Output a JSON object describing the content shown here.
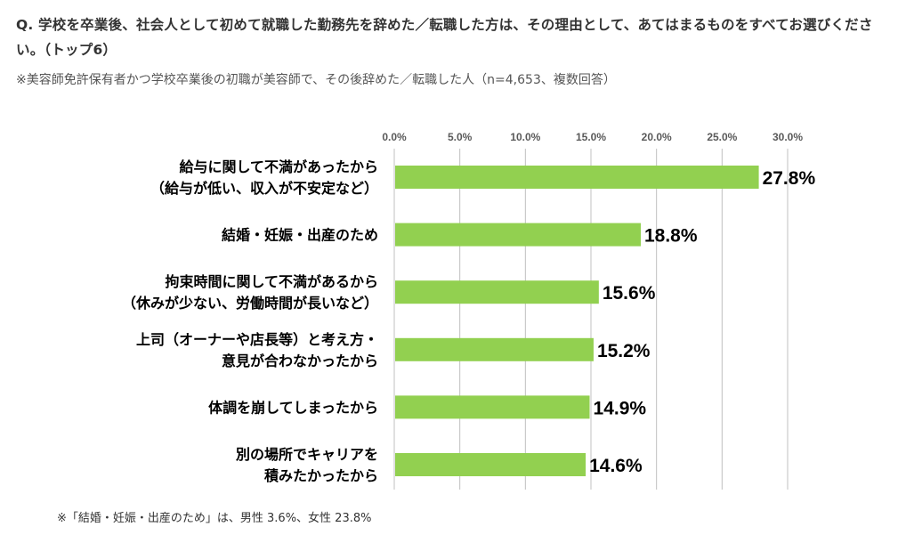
{
  "header": {
    "question": "Q. 学校を卒業後、社会人として初めて就職した勤務先を辞めた／転職した方は、その理由として、あてはまるものをすべてお選びください。（トップ6）",
    "subtitle": "※美容師免許保有者かつ学校卒業後の初職が美容師で、その後辞めた／転職した人（n=4,653、複数回答）"
  },
  "footnote": "※「結婚・妊娠・出産のため」は、男性 3.6%、女性 23.8%",
  "colors": {
    "bar": "#92D050",
    "grid": "#C0C0C0",
    "axis_text": "#595959",
    "label_text": "#000000"
  },
  "chart_data": {
    "type": "bar",
    "orientation": "horizontal",
    "categories": [
      [
        "給与に関して不満があったから",
        "（給与が低い、収入が不安定など）"
      ],
      [
        "結婚・妊娠・出産のため"
      ],
      [
        "拘束時間に関して不満があるから",
        "（休みが少ない、労働時間が長いなど）"
      ],
      [
        "上司（オーナーや店長等）と考え方・",
        "意見が合わなかったから"
      ],
      [
        "体調を崩してしまったから"
      ],
      [
        "別の場所でキャリアを",
        "積みたかったから"
      ]
    ],
    "values": [
      27.8,
      18.8,
      15.6,
      15.2,
      14.9,
      14.6
    ],
    "data_labels": [
      "27.8%",
      "18.8%",
      "15.6%",
      "15.2%",
      "14.9%",
      "14.6%"
    ],
    "xlim": [
      0,
      30
    ],
    "ticks": [
      0,
      5,
      10,
      15,
      20,
      25,
      30
    ],
    "tick_labels": [
      "0.0%",
      "5.0%",
      "10.0%",
      "15.0%",
      "20.0%",
      "25.0%",
      "30.0%"
    ],
    "axis_position": "top",
    "grid": true,
    "legend": "none"
  }
}
